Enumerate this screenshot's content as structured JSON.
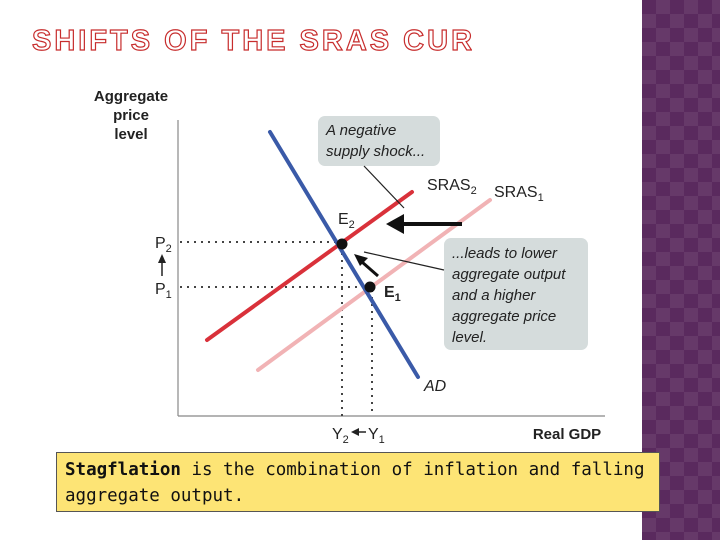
{
  "slide": {
    "title": "SHIFTS OF THE SRAS CURVE",
    "colors": {
      "title": "#c72d2d",
      "side_band": "#5a2a5e",
      "caption_bg": "#fde475",
      "callout_bg": "#d5dcdc"
    }
  },
  "graph": {
    "ylabel": [
      "Aggregate",
      "price",
      "level"
    ],
    "xlabel": "Real GDP",
    "curves": {
      "sras2": {
        "name": "SRAS",
        "sub": "2",
        "color": "#d9313a"
      },
      "sras1": {
        "name": "SRAS",
        "sub": "1",
        "color": "#f1b3b5"
      },
      "ad": {
        "name": "AD",
        "color": "#3a5aa8"
      }
    },
    "points": {
      "e2": {
        "name": "E",
        "sub": "2"
      },
      "e1": {
        "name": "E",
        "sub": "1"
      }
    },
    "prices": {
      "p2": {
        "name": "P",
        "sub": "2"
      },
      "p1": {
        "name": "P",
        "sub": "1"
      }
    },
    "outputs": {
      "y2": {
        "name": "Y",
        "sub": "2"
      },
      "y1": {
        "name": "Y",
        "sub": "1"
      }
    },
    "callout_shock": [
      "A negative",
      "supply shock..."
    ],
    "callout_result": [
      "...leads to lower",
      "aggregate output",
      "and a higher",
      "aggregate price",
      "level."
    ]
  },
  "caption": {
    "term": "Stagflation",
    "rest": " is the combination of inflation and falling aggregate output."
  }
}
